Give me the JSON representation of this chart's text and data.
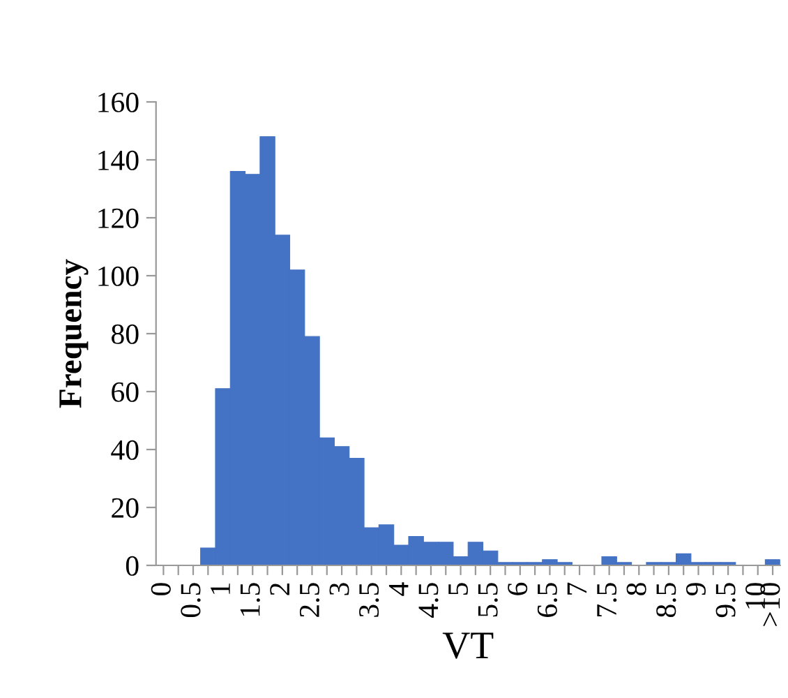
{
  "chart_data": {
    "type": "bar",
    "xlabel": "VT",
    "ylabel": "Frequency",
    "categories": [
      "0",
      null,
      "0.5",
      null,
      "1",
      null,
      "1.5",
      null,
      "2",
      null,
      "2.5",
      null,
      "3",
      null,
      "3.5",
      null,
      "4",
      null,
      "4.5",
      null,
      "5",
      null,
      "5.5",
      null,
      "6",
      null,
      "6.5",
      null,
      "7",
      null,
      "7.5",
      null,
      "8",
      null,
      "8.5",
      null,
      "9",
      null,
      "9.5",
      null,
      "10",
      ">10"
    ],
    "values": [
      0,
      0,
      0,
      6,
      61,
      136,
      135,
      148,
      114,
      102,
      79,
      44,
      41,
      37,
      13,
      14,
      7,
      10,
      8,
      8,
      3,
      8,
      5,
      1,
      1,
      1,
      2,
      1,
      0,
      0,
      3,
      1,
      0,
      1,
      1,
      4,
      1,
      1,
      1,
      0,
      0,
      2
    ],
    "color": "#4472c4",
    "ylim": [
      0,
      160
    ],
    "yticks": [
      0,
      20,
      40,
      60,
      80,
      100,
      120,
      140,
      160
    ],
    "grid": false
  }
}
